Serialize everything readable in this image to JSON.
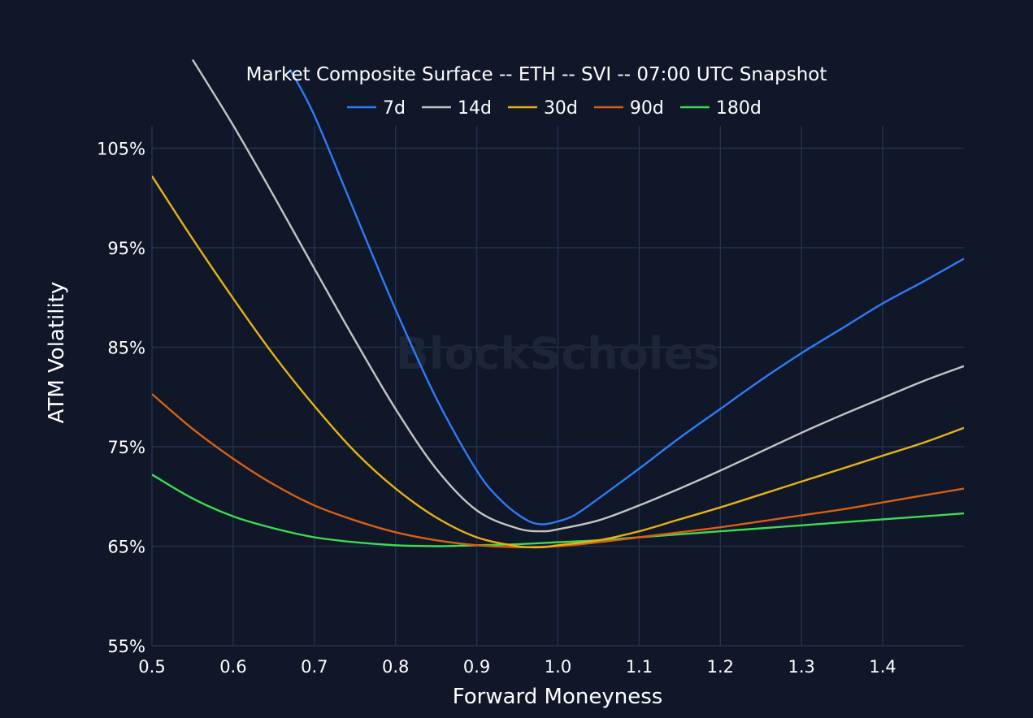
{
  "chart_data": {
    "type": "line",
    "title": "Market Composite Surface -- ETH -- SVI -- 07:00 UTC Snapshot",
    "xlabel": "Forward Moneyness",
    "ylabel": "ATM Volatility",
    "watermark": "BlockScholes",
    "xlim": [
      0.5,
      1.5
    ],
    "ylim": [
      55,
      115
    ],
    "x_ticks": [
      0.5,
      0.6,
      0.7,
      0.8,
      0.9,
      1.0,
      1.1,
      1.2,
      1.3,
      1.4
    ],
    "x_tick_labels": [
      "0.5",
      "0.6",
      "0.7",
      "0.8",
      "0.9",
      "1.0",
      "1.1",
      "1.2",
      "1.3",
      "1.4"
    ],
    "y_ticks": [
      55,
      65,
      75,
      85,
      95,
      105
    ],
    "y_tick_labels": [
      "55%",
      "65%",
      "75%",
      "85%",
      "95%",
      "105%"
    ],
    "grid": true,
    "legend_position": "top-center",
    "series": [
      {
        "name": "7d",
        "color": "#2f7bf5",
        "x": [
          0.67,
          0.7,
          0.75,
          0.8,
          0.85,
          0.9,
          0.93,
          0.96,
          0.98,
          1.0,
          1.02,
          1.05,
          1.1,
          1.15,
          1.2,
          1.25,
          1.3,
          1.35,
          1.4,
          1.45,
          1.5
        ],
        "y": [
          112.9,
          108.3,
          98.5,
          88.8,
          79.9,
          72.6,
          69.6,
          67.7,
          67.2,
          67.5,
          68.1,
          69.8,
          72.8,
          75.9,
          78.8,
          81.7,
          84.4,
          86.9,
          89.4,
          91.6,
          93.9
        ]
      },
      {
        "name": "14d",
        "color": "#c4c4c4",
        "x": [
          0.55,
          0.6,
          0.65,
          0.7,
          0.75,
          0.8,
          0.85,
          0.9,
          0.95,
          0.98,
          1.0,
          1.05,
          1.1,
          1.15,
          1.2,
          1.25,
          1.3,
          1.35,
          1.4,
          1.45,
          1.5
        ],
        "y": [
          113.9,
          107.3,
          100.2,
          92.9,
          85.7,
          78.8,
          72.8,
          68.6,
          66.8,
          66.5,
          66.7,
          67.6,
          69.1,
          70.8,
          72.6,
          74.5,
          76.4,
          78.2,
          79.9,
          81.6,
          83.1
        ]
      },
      {
        "name": "30d",
        "color": "#e8b115",
        "x": [
          0.5,
          0.55,
          0.6,
          0.65,
          0.7,
          0.75,
          0.8,
          0.85,
          0.9,
          0.95,
          0.98,
          1.0,
          1.05,
          1.1,
          1.15,
          1.2,
          1.25,
          1.3,
          1.35,
          1.4,
          1.45,
          1.5
        ],
        "y": [
          102.2,
          95.9,
          89.9,
          84.2,
          79.1,
          74.5,
          70.8,
          67.9,
          65.9,
          65.0,
          64.9,
          65.1,
          65.6,
          66.5,
          67.7,
          68.9,
          70.2,
          71.5,
          72.8,
          74.1,
          75.4,
          76.9
        ]
      },
      {
        "name": "90d",
        "color": "#d95f13",
        "x": [
          0.5,
          0.55,
          0.6,
          0.65,
          0.7,
          0.75,
          0.8,
          0.85,
          0.9,
          0.95,
          1.0,
          1.05,
          1.1,
          1.15,
          1.2,
          1.25,
          1.3,
          1.35,
          1.4,
          1.45,
          1.5
        ],
        "y": [
          80.3,
          76.8,
          73.8,
          71.2,
          69.1,
          67.6,
          66.4,
          65.6,
          65.1,
          64.9,
          65.0,
          65.4,
          65.9,
          66.4,
          66.9,
          67.5,
          68.1,
          68.7,
          69.4,
          70.1,
          70.8
        ]
      },
      {
        "name": "180d",
        "color": "#3ddc52",
        "x": [
          0.5,
          0.55,
          0.6,
          0.65,
          0.7,
          0.75,
          0.8,
          0.85,
          0.9,
          0.95,
          1.0,
          1.05,
          1.1,
          1.15,
          1.2,
          1.25,
          1.3,
          1.35,
          1.4,
          1.45,
          1.5
        ],
        "y": [
          72.2,
          69.8,
          68.0,
          66.8,
          65.9,
          65.4,
          65.1,
          65.0,
          65.1,
          65.2,
          65.4,
          65.6,
          65.9,
          66.2,
          66.5,
          66.8,
          67.1,
          67.4,
          67.7,
          68.0,
          68.3
        ]
      }
    ]
  }
}
